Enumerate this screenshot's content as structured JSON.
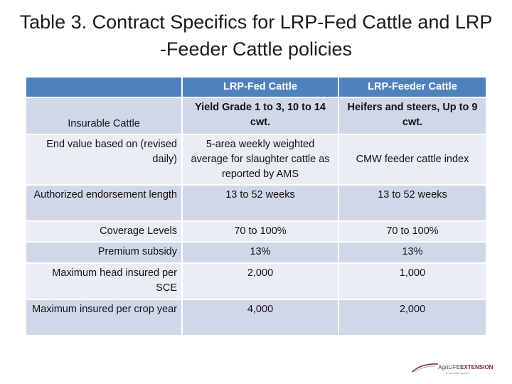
{
  "title": {
    "line1": "Table 3. Contract Specifics for LRP-Fed Cattle and  LRP",
    "line2": "-Feeder Cattle policies"
  },
  "table": {
    "headers": [
      "",
      "LRP-Fed Cattle",
      "LRP-Feeder Cattle"
    ],
    "rows": [
      {
        "label": "Insurable Cattle",
        "fed": "Yield Grade 1 to 3, 10 to 14 cwt.",
        "feeder": "Heifers and steers, Up to 9 cwt."
      },
      {
        "label": "End value based on (revised daily)",
        "fed": "5-area weekly weighted average for slaughter cattle as reported by AMS",
        "feeder": "CMW feeder cattle index"
      },
      {
        "label": "Authorized endorsement length",
        "fed": "13 to 52 weeks",
        "feeder": "13 to 52 weeks"
      },
      {
        "label": "Coverage Levels",
        "fed": "70 to 100%",
        "feeder": "70 to 100%"
      },
      {
        "label": "Premium subsidy",
        "fed": "13%",
        "feeder": "13%"
      },
      {
        "label": "Maximum head insured per SCE",
        "fed": "2,000",
        "feeder": "1,000"
      },
      {
        "label": "Maximum insured per crop year",
        "fed": "4,000",
        "feeder": "2,000"
      }
    ]
  },
  "logo": {
    "text_prefix": "AgriLIFE",
    "text_ext": "EXTENSION",
    "subtitle": "Texas A&M System"
  },
  "colors": {
    "header_bg": "#4f81bd",
    "row_dark": "#d0d8e8",
    "row_light": "#e9edf4"
  }
}
